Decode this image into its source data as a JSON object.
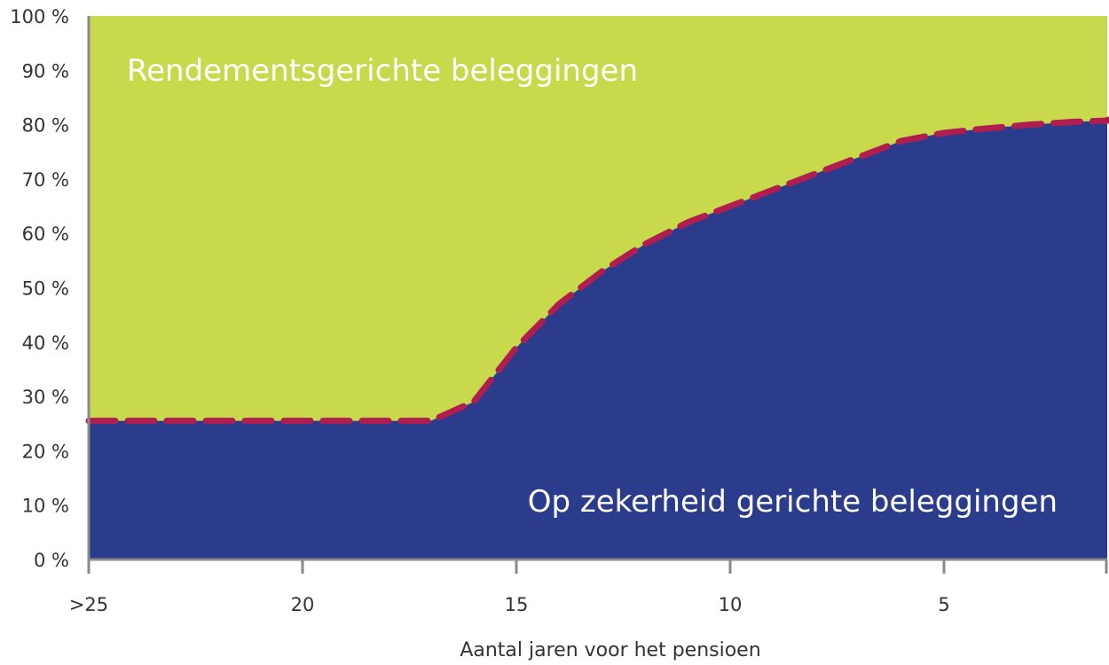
{
  "chart_data": {
    "type": "area",
    "xlabel": "Aantal jaren voor het pensioen",
    "ylabel": "",
    "title": "",
    "x_ticks": [
      ">25",
      "20",
      "15",
      "10",
      "5"
    ],
    "y_ticks": [
      "0 %",
      "10 %",
      "20 %",
      "30 %",
      "40 %",
      "50 %",
      "60 %",
      "70 %",
      "80 %",
      "90 %",
      "100 %"
    ],
    "xlim": [
      25,
      0.8
    ],
    "ylim": [
      0,
      100
    ],
    "x": [
      25,
      17,
      16,
      15,
      14,
      13,
      12,
      11,
      10,
      9,
      8,
      7,
      6,
      5,
      4,
      3,
      2,
      1,
      0.8
    ],
    "series": [
      {
        "name": "Op zekerheid gerichte beleggingen",
        "color": "#2b3c8c",
        "values": [
          25.5,
          25.5,
          29,
          39,
          47,
          53,
          58,
          62,
          65,
          68,
          71,
          74,
          77,
          78.5,
          79.3,
          80,
          80.5,
          80.8,
          80.9
        ]
      },
      {
        "name": "Rendementsgerichte beleggingen",
        "color": "#c8d94b",
        "values": [
          74.5,
          74.5,
          71,
          61,
          53,
          47,
          42,
          38,
          35,
          32,
          29,
          26,
          23,
          21.5,
          20.7,
          20,
          19.5,
          19.2,
          19.1
        ]
      }
    ],
    "dashed_line": {
      "color": "#b01e4f",
      "values": [
        25.5,
        25.5,
        29,
        39,
        47,
        53,
        58,
        62,
        65,
        68,
        71,
        74,
        77,
        78.5,
        79.3,
        80,
        80.5,
        80.8,
        80.9
      ]
    },
    "grid": false,
    "legend": "inside-areas",
    "area_labels": {
      "top": "Rendementsgerichte beleggingen",
      "bottom": "Op zekerheid gerichte beleggingen"
    }
  }
}
